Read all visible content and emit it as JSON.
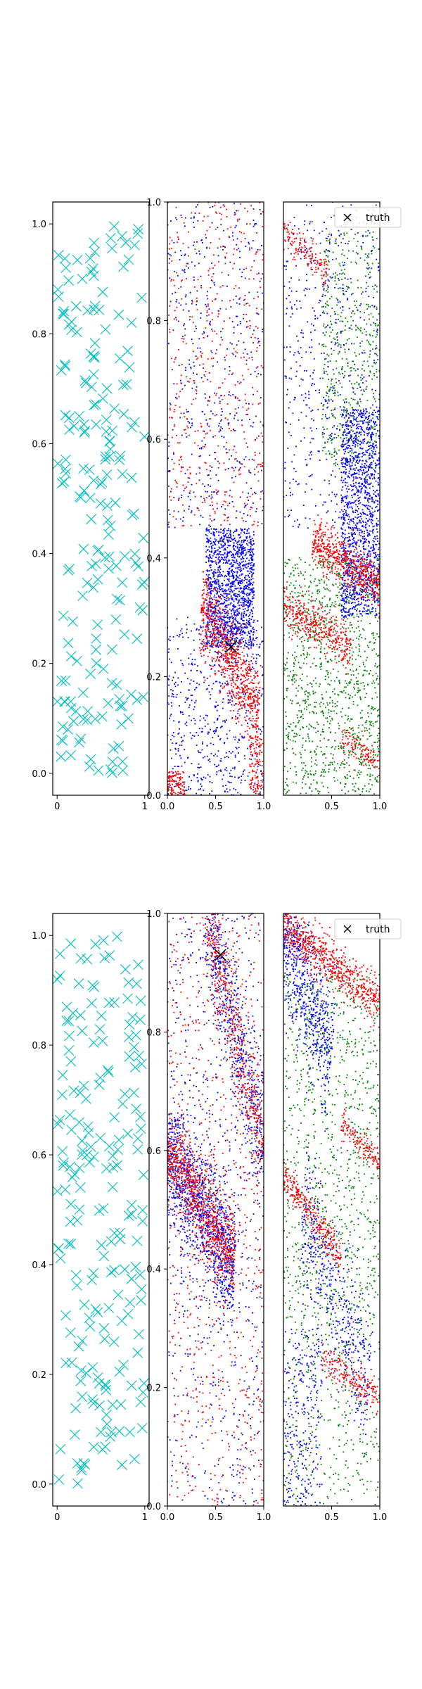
{
  "chart_data": [
    {
      "type": "scatter",
      "panel": "row1-col1",
      "xlim": [
        -0.05,
        1.05
      ],
      "ylim": [
        -0.04,
        1.04
      ],
      "xticks": [
        {
          "v": 0,
          "label": "0"
        },
        {
          "v": 1,
          "label": "1"
        }
      ],
      "yticks": [
        {
          "v": 0.0,
          "label": "0.0"
        },
        {
          "v": 0.2,
          "label": "0.2"
        },
        {
          "v": 0.4,
          "label": "0.4"
        },
        {
          "v": 0.6,
          "label": "0.6"
        },
        {
          "v": 0.8,
          "label": "0.8"
        },
        {
          "v": 1.0,
          "label": "1.0"
        }
      ],
      "series": [
        {
          "color": "#00bfbf",
          "marker": "x",
          "count": 200,
          "approx_distribution": "uniform over [0,1]x[0,1]",
          "seed": 11
        }
      ]
    },
    {
      "type": "scatter",
      "panel": "row1-col2",
      "xlim": [
        0.0,
        1.0
      ],
      "ylim": [
        0.0,
        1.0
      ],
      "xticks": [
        {
          "v": 0.0,
          "label": "0.0"
        },
        {
          "v": 0.5,
          "label": "0.5"
        },
        {
          "v": 1.0,
          "label": "1.0"
        }
      ],
      "yticks": [
        {
          "v": 0.0,
          "label": "0.0"
        },
        {
          "v": 0.2,
          "label": "0.2"
        },
        {
          "v": 0.4,
          "label": "0.4"
        },
        {
          "v": 0.6,
          "label": "0.6"
        },
        {
          "v": 0.8,
          "label": "0.8"
        },
        {
          "v": 1.0,
          "label": "1.0"
        }
      ],
      "truth": [
        0.66,
        0.25
      ],
      "series": [
        {
          "color": "#0000ff",
          "marker": "dot",
          "seed": 21,
          "clusters": [
            {
              "count": 1400,
              "x": [
                0.4,
                0.9
              ],
              "y": [
                0.25,
                0.45
              ]
            },
            {
              "count": 600,
              "x": [
                0.0,
                1.0
              ],
              "y": [
                0.0,
                0.3
              ]
            },
            {
              "count": 500,
              "x": [
                0.0,
                1.0
              ],
              "y": [
                0.45,
                1.0
              ]
            }
          ]
        },
        {
          "color": "#ff0000",
          "marker": "dot",
          "seed": 22,
          "clusters": [
            {
              "count": 800,
              "band": {
                "x0": 0.35,
                "y0": 0.32,
                "x1": 0.95,
                "y1": 0.14,
                "width": 0.035
              }
            },
            {
              "count": 120,
              "x": [
                0.0,
                0.18
              ],
              "y": [
                0.0,
                0.04
              ]
            },
            {
              "count": 500,
              "x": [
                0.0,
                1.0
              ],
              "y": [
                0.45,
                1.0
              ]
            },
            {
              "count": 120,
              "x": [
                0.85,
                1.0
              ],
              "y": [
                0.0,
                0.1
              ]
            }
          ]
        }
      ]
    },
    {
      "type": "scatter",
      "panel": "row1-col3",
      "xlim": [
        0.0,
        1.0
      ],
      "ylim": [
        0.0,
        1.0
      ],
      "xticks": [
        {
          "v": 0.5,
          "label": "0.5"
        },
        {
          "v": 1.0,
          "label": "1.0"
        }
      ],
      "legend": {
        "label": "truth",
        "position": "top-right"
      },
      "series": [
        {
          "color": "#008000",
          "marker": "dot",
          "seed": 31,
          "clusters": [
            {
              "count": 1200,
              "x": [
                0.0,
                1.0
              ],
              "y": [
                0.0,
                0.4
              ]
            },
            {
              "count": 500,
              "x": [
                0.4,
                1.0
              ],
              "y": [
                0.55,
                0.95
              ]
            }
          ]
        },
        {
          "color": "#0000ff",
          "marker": "dot",
          "seed": 32,
          "clusters": [
            {
              "count": 1300,
              "x": [
                0.6,
                1.0
              ],
              "y": [
                0.3,
                0.65
              ]
            },
            {
              "count": 600,
              "x": [
                0.0,
                1.0
              ],
              "y": [
                0.45,
                1.0
              ]
            }
          ]
        },
        {
          "color": "#ff0000",
          "marker": "dot",
          "seed": 33,
          "clusters": [
            {
              "count": 600,
              "band": {
                "x0": 0.3,
                "y0": 0.43,
                "x1": 1.0,
                "y1": 0.35,
                "width": 0.02
              }
            },
            {
              "count": 400,
              "band": {
                "x0": 0.0,
                "y0": 0.32,
                "x1": 0.7,
                "y1": 0.25,
                "width": 0.018
              }
            },
            {
              "count": 150,
              "band": {
                "x0": 0.0,
                "y0": 0.95,
                "x1": 0.45,
                "y1": 0.88,
                "width": 0.012
              }
            },
            {
              "count": 120,
              "band": {
                "x0": 0.6,
                "y0": 0.1,
                "x1": 1.0,
                "y1": 0.05,
                "width": 0.012
              }
            }
          ]
        }
      ]
    },
    {
      "type": "scatter",
      "panel": "row2-col1",
      "xlim": [
        -0.05,
        1.05
      ],
      "ylim": [
        -0.04,
        1.04
      ],
      "xticks": [
        {
          "v": 0,
          "label": "0"
        },
        {
          "v": 1,
          "label": "1"
        }
      ],
      "yticks": [
        {
          "v": 0.0,
          "label": "0.0"
        },
        {
          "v": 0.2,
          "label": "0.2"
        },
        {
          "v": 0.4,
          "label": "0.4"
        },
        {
          "v": 0.6,
          "label": "0.6"
        },
        {
          "v": 0.8,
          "label": "0.8"
        },
        {
          "v": 1.0,
          "label": "1.0"
        }
      ],
      "series": [
        {
          "color": "#00bfbf",
          "marker": "x",
          "count": 200,
          "approx_distribution": "uniform over [0,1]x[0,1]",
          "seed": 41
        }
      ]
    },
    {
      "type": "scatter",
      "panel": "row2-col2",
      "xlim": [
        0.0,
        1.0
      ],
      "ylim": [
        0.0,
        1.0
      ],
      "xticks": [
        {
          "v": 0.0,
          "label": "0.0"
        },
        {
          "v": 0.5,
          "label": "0.5"
        },
        {
          "v": 1.0,
          "label": "1.0"
        }
      ],
      "yticks": [
        {
          "v": 0.0,
          "label": "0.0"
        },
        {
          "v": 0.2,
          "label": "0.2"
        },
        {
          "v": 0.4,
          "label": "0.4"
        },
        {
          "v": 0.6,
          "label": "0.6"
        },
        {
          "v": 0.8,
          "label": "0.8"
        },
        {
          "v": 1.0,
          "label": "1.0"
        }
      ],
      "truth": [
        0.55,
        0.93
      ],
      "series": [
        {
          "color": "#0000ff",
          "marker": "dot",
          "seed": 51,
          "clusters": [
            {
              "count": 1200,
              "band": {
                "x0": 0.0,
                "y0": 0.6,
                "x1": 0.7,
                "y1": 0.4,
                "width": 0.05
              }
            },
            {
              "count": 600,
              "band": {
                "x0": 0.4,
                "y0": 1.0,
                "x1": 1.0,
                "y1": 0.6,
                "width": 0.05
              }
            },
            {
              "count": 700,
              "x": [
                0.0,
                1.0
              ],
              "y": [
                0.0,
                1.0
              ]
            }
          ]
        },
        {
          "color": "#ff0000",
          "marker": "dot",
          "seed": 52,
          "clusters": [
            {
              "count": 900,
              "band": {
                "x0": 0.0,
                "y0": 0.6,
                "x1": 0.7,
                "y1": 0.42,
                "width": 0.035
              }
            },
            {
              "count": 500,
              "band": {
                "x0": 0.4,
                "y0": 1.0,
                "x1": 1.0,
                "y1": 0.6,
                "width": 0.04
              }
            },
            {
              "count": 700,
              "x": [
                0.0,
                1.0
              ],
              "y": [
                0.0,
                1.0
              ]
            }
          ]
        }
      ]
    },
    {
      "type": "scatter",
      "panel": "row2-col3",
      "xlim": [
        0.0,
        1.0
      ],
      "ylim": [
        0.0,
        1.0
      ],
      "xticks": [
        {
          "v": 0.5,
          "label": "0.5"
        },
        {
          "v": 1.0,
          "label": "1.0"
        }
      ],
      "legend": {
        "label": "truth",
        "position": "top-right"
      },
      "series": [
        {
          "color": "#008000",
          "marker": "dot",
          "seed": 61,
          "clusters": [
            {
              "count": 1000,
              "x": [
                0.0,
                1.0
              ],
              "y": [
                0.3,
                0.9
              ]
            },
            {
              "count": 300,
              "x": [
                0.0,
                1.0
              ],
              "y": [
                0.0,
                0.3
              ]
            }
          ]
        },
        {
          "color": "#0000ff",
          "marker": "dot",
          "seed": 62,
          "clusters": [
            {
              "count": 700,
              "band": {
                "x0": 0.0,
                "y0": 0.98,
                "x1": 0.5,
                "y1": 0.75,
                "width": 0.06
              }
            },
            {
              "count": 500,
              "band": {
                "x0": 0.2,
                "y0": 0.5,
                "x1": 0.9,
                "y1": 0.2,
                "width": 0.06
              }
            },
            {
              "count": 300,
              "x": [
                0.0,
                0.4
              ],
              "y": [
                0.0,
                0.3
              ]
            }
          ]
        },
        {
          "color": "#ff0000",
          "marker": "dot",
          "seed": 63,
          "clusters": [
            {
              "count": 700,
              "band": {
                "x0": 0.0,
                "y0": 0.98,
                "x1": 1.0,
                "y1": 0.85,
                "width": 0.02
              }
            },
            {
              "count": 300,
              "band": {
                "x0": 0.0,
                "y0": 0.56,
                "x1": 0.6,
                "y1": 0.42,
                "width": 0.015
              }
            },
            {
              "count": 200,
              "band": {
                "x0": 0.4,
                "y0": 0.25,
                "x1": 1.0,
                "y1": 0.18,
                "width": 0.015
              }
            },
            {
              "count": 150,
              "band": {
                "x0": 0.6,
                "y0": 0.65,
                "x1": 1.0,
                "y1": 0.58,
                "width": 0.012
              }
            }
          ]
        }
      ]
    }
  ]
}
